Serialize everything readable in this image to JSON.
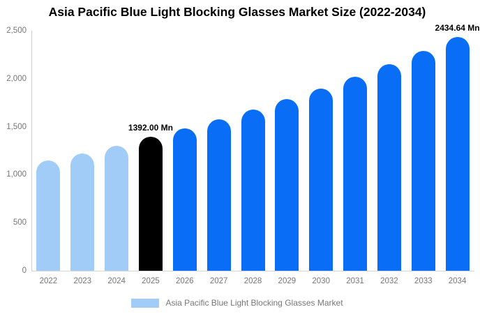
{
  "page": {
    "background": "#ffffff"
  },
  "chart_data": {
    "type": "bar",
    "title": "Asia Pacific Blue Light Blocking Glasses Market Size (2022-2034)",
    "unit": "Mn",
    "categories": [
      "2022",
      "2023",
      "2024",
      "2025",
      "2026",
      "2027",
      "2028",
      "2029",
      "2030",
      "2031",
      "2032",
      "2033",
      "2034"
    ],
    "series": [
      {
        "name": "Asia Pacific Blue Light Blocking Glasses Market",
        "values": [
          1150,
          1224,
          1303,
          1392,
          1481,
          1576,
          1677,
          1785,
          1899,
          2021,
          2150,
          2288,
          2434.64
        ]
      }
    ],
    "point_roles": [
      "historical",
      "historical",
      "historical",
      "base_year",
      "forecast",
      "forecast",
      "forecast",
      "forecast",
      "forecast",
      "forecast",
      "forecast",
      "forecast",
      "forecast"
    ],
    "palette": {
      "historical": "#a2ccf8",
      "base_year": "#000000",
      "forecast": "#096df5"
    },
    "annotations": [
      {
        "index": 3,
        "category": "2025",
        "text": "1392.00 Mn"
      },
      {
        "index": 12,
        "category": "2034",
        "text": "2434.64 Mn"
      }
    ],
    "y_axis": {
      "min": 0,
      "max": 2500,
      "ticks": [
        "2,500",
        "2,000",
        "1,500",
        "1,000",
        "500",
        "0"
      ]
    },
    "grid": false,
    "legend": {
      "position": "bottom",
      "items": [
        {
          "label": "Asia Pacific Blue Light Blocking Glasses Market",
          "color": "#a2ccf8"
        }
      ]
    },
    "style_colors": {
      "axis_line": "#cccccc",
      "baseline": "#d6d6d6",
      "tick_text": "#757575",
      "title_text": "#000000",
      "annotation_text": "#000000",
      "legend_text": "#777777"
    }
  }
}
